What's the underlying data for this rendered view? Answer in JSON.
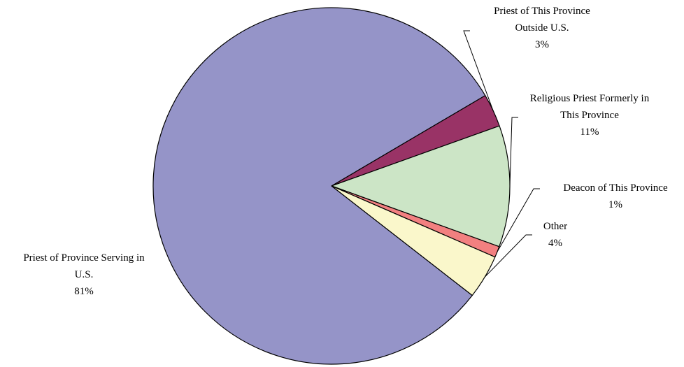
{
  "chart_data": {
    "type": "pie",
    "title": "",
    "legend": "none",
    "slices": [
      {
        "label_lines": [
          "Priest of This Province",
          "Outside U.S."
        ],
        "value": 3,
        "percent_label": "3%",
        "color": "#993366"
      },
      {
        "label_lines": [
          "Religious Priest Formerly in",
          "This Province"
        ],
        "value": 11,
        "percent_label": "11%",
        "color": "#CCE5C6"
      },
      {
        "label_lines": [
          "Deacon of This Province"
        ],
        "value": 1,
        "percent_label": "1%",
        "color": "#F28080"
      },
      {
        "label_lines": [
          "Other"
        ],
        "value": 4,
        "percent_label": "4%",
        "color": "#FAF7CB"
      },
      {
        "label_lines": [
          "Priest of Province Serving in",
          "U.S."
        ],
        "value": 81,
        "percent_label": "81%",
        "color": "#9594C8"
      }
    ]
  }
}
